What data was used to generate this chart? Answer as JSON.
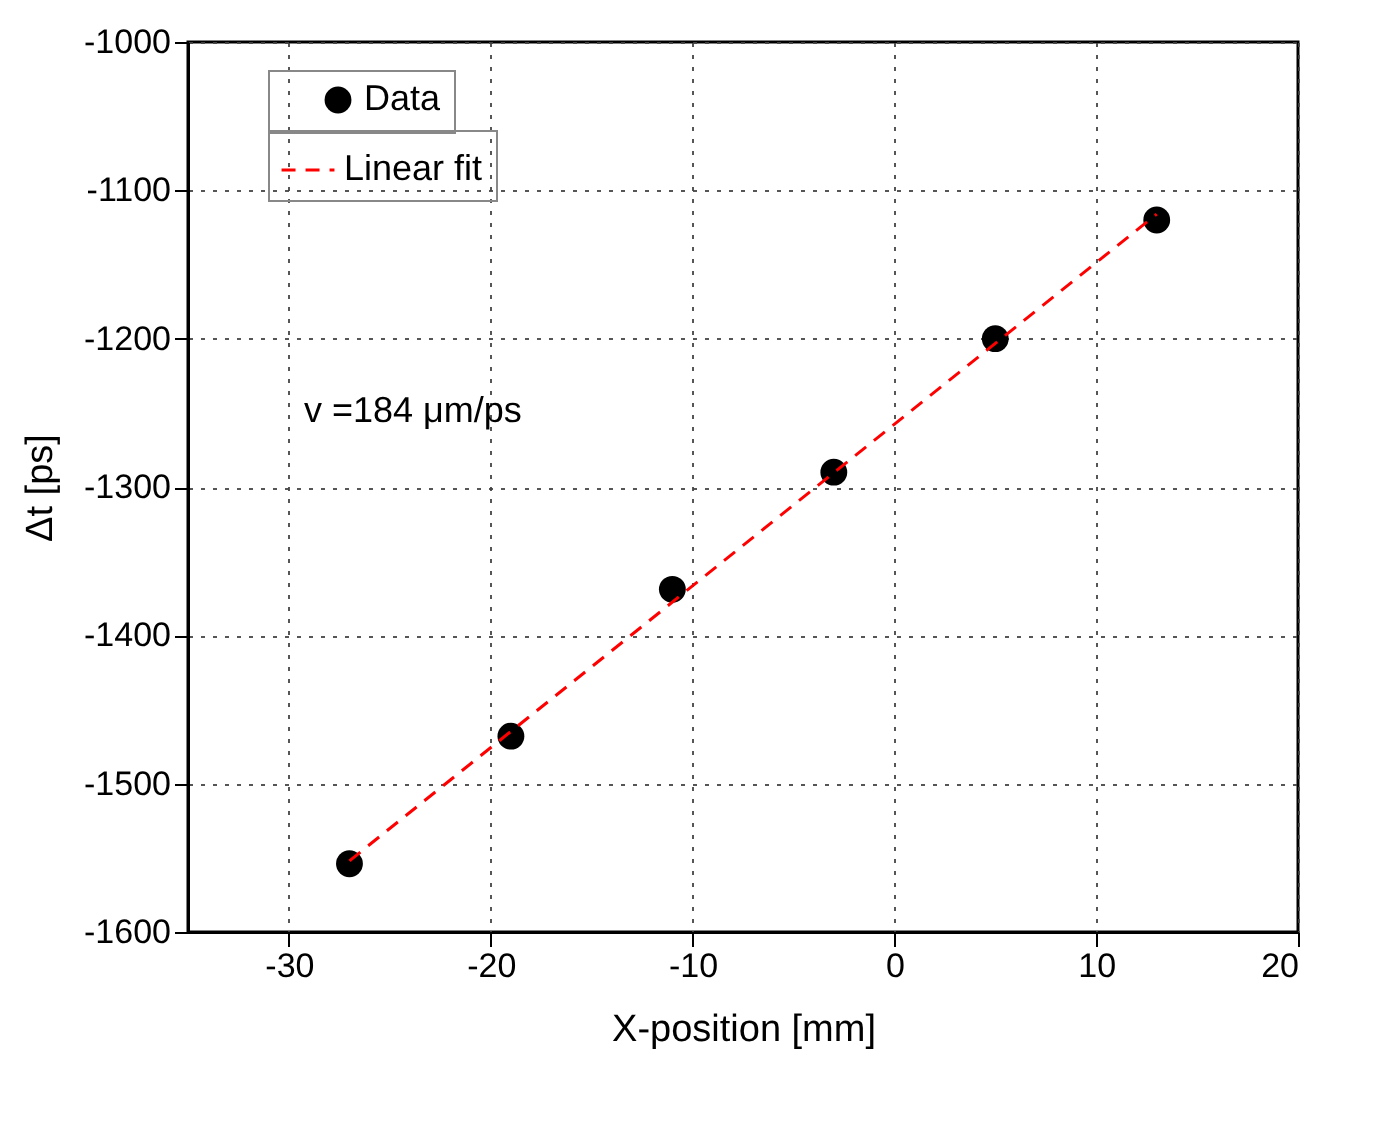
{
  "chart_data": {
    "type": "scatter",
    "xlabel": "X-position [mm]",
    "ylabel": "Δt [ps]",
    "annotations": [
      "v =184 μm/ps"
    ],
    "x": [
      -27,
      -19,
      -11,
      -3,
      5,
      13
    ],
    "series": [
      {
        "name": "Data",
        "color": "#000000",
        "marker": "circle",
        "values": [
          -1554,
          -1468,
          -1369,
          -1290,
          -1200,
          -1120
        ]
      },
      {
        "name": "Linear fit",
        "type": "line",
        "x": [
          -27,
          13
        ],
        "values": [
          -1552,
          -1116
        ],
        "color": "#ff0000",
        "line_style": "dashed"
      }
    ],
    "xlim": [
      -35,
      20
    ],
    "xticks": [
      -30,
      -20,
      -10,
      0,
      10,
      20
    ],
    "ylim": [
      -1600,
      -1000
    ],
    "yticks": [
      -1600,
      -1500,
      -1400,
      -1300,
      -1200,
      -1100,
      -1000
    ],
    "grid": true,
    "legend": "top left"
  }
}
